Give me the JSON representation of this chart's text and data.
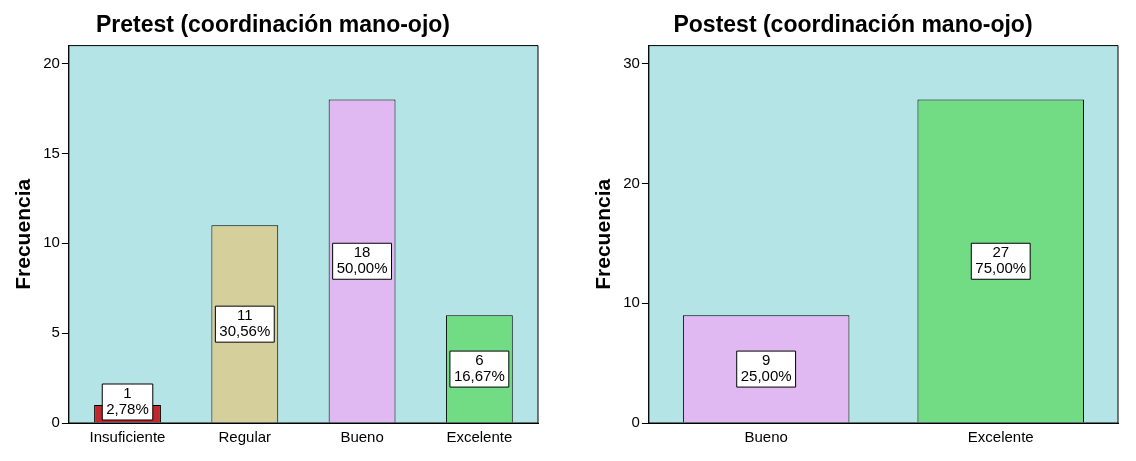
{
  "chart_data": [
    {
      "type": "bar",
      "title": "Pretest (coordinación mano-ojo)",
      "ylabel": "Frecuencia",
      "categories": [
        "Insuficiente",
        "Regular",
        "Bueno",
        "Excelente"
      ],
      "values": [
        1,
        11,
        18,
        6
      ],
      "colors": [
        "#c0282d",
        "#d5cf9b",
        "#e0b9f2",
        "#72dc84"
      ],
      "value_labels": [
        "1\n2,78%",
        "11\n30,56%",
        "18\n50,00%",
        "6\n16,67%"
      ],
      "ylim": [
        0,
        21
      ],
      "yticks": [
        0,
        5,
        10,
        15,
        20
      ]
    },
    {
      "type": "bar",
      "title": "Postest (coordinación mano-ojo)",
      "ylabel": "Frecuencia",
      "categories": [
        "Bueno",
        "Excelente"
      ],
      "values": [
        9,
        27
      ],
      "colors": [
        "#e0b9f2",
        "#72dc84"
      ],
      "value_labels": [
        "9\n25,00%",
        "27\n75,00%"
      ],
      "ylim": [
        0,
        31.5
      ],
      "yticks": [
        0,
        10,
        20,
        30
      ]
    }
  ]
}
